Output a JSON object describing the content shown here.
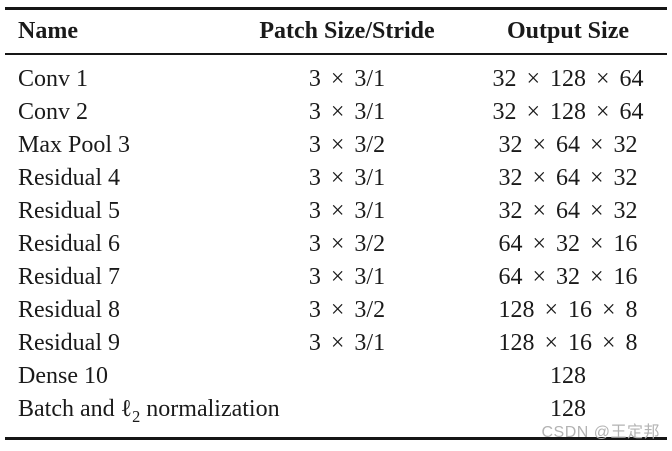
{
  "page": {
    "background_color": "#ffffff",
    "text_color": "#1a1a1a",
    "rule_color": "#161616"
  },
  "table": {
    "columns": [
      "Name",
      "Patch Size/Stride",
      "Output Size"
    ],
    "rows": [
      {
        "name": "Conv 1",
        "patch": "3 × 3/1",
        "output": "32 × 128 × 64"
      },
      {
        "name": "Conv 2",
        "patch": "3 × 3/1",
        "output": "32 × 128 × 64"
      },
      {
        "name": "Max Pool 3",
        "patch": "3 × 3/2",
        "output": "32 × 64 × 32"
      },
      {
        "name": "Residual 4",
        "patch": "3 × 3/1",
        "output": "32 × 64 × 32"
      },
      {
        "name": "Residual 5",
        "patch": "3 × 3/1",
        "output": "32 × 64 × 32"
      },
      {
        "name": "Residual 6",
        "patch": "3 × 3/2",
        "output": "64 × 32 × 16"
      },
      {
        "name": "Residual 7",
        "patch": "3 × 3/1",
        "output": "64 × 32 × 16"
      },
      {
        "name": "Residual 8",
        "patch": "3 × 3/2",
        "output": "128 × 16 × 8"
      },
      {
        "name": "Residual 9",
        "patch": "3 × 3/1",
        "output": "128 × 16 × 8"
      },
      {
        "name": "Dense 10",
        "patch": "",
        "output": "128"
      },
      {
        "name_prefix": "Batch and ℓ",
        "name_sub": "2",
        "name_suffix": " normalization",
        "patch": "",
        "output": "128"
      }
    ]
  },
  "watermark": {
    "text": "CSDN @王定邦",
    "color": "#b3b3b3"
  }
}
